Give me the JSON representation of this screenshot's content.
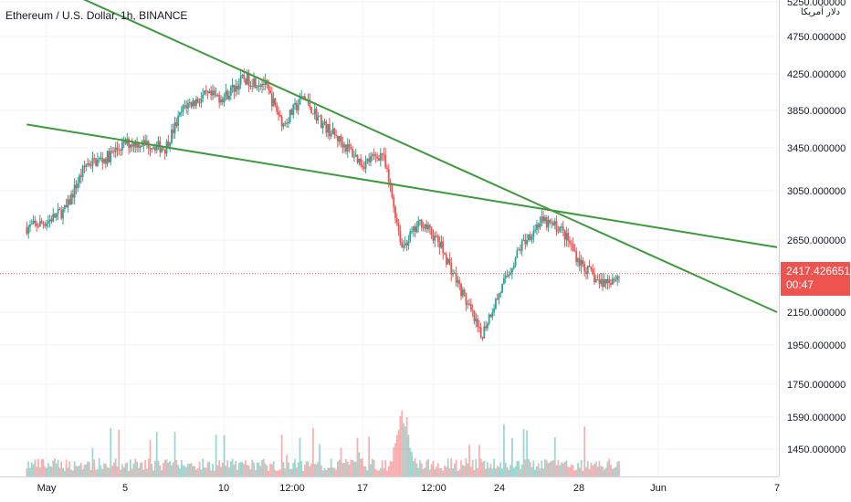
{
  "title": "Ethereum / U.S. Dollar, 1h, BINANCE",
  "currency_label": "دلار آمریکا",
  "colors": {
    "up": "#26a69a",
    "down": "#ef5350",
    "trendline": "#3d9a3d",
    "grid": "#f0f3fa",
    "axis_text": "#131722",
    "axis_border": "#d1d4dc",
    "price_badge": "#ef5350"
  },
  "price_badge": {
    "price": "2417.426651",
    "countdown": "00:47"
  },
  "chart_data": {
    "type": "candlestick",
    "symbol": "Ethereum / U.S. Dollar",
    "interval": "1h",
    "exchange": "BINANCE",
    "current_price": 2417.426651,
    "x_tick_labels": [
      "May",
      "5",
      "10",
      "12:00",
      "17",
      "12:00",
      "24",
      "28",
      "Jun",
      "7"
    ],
    "y_tick_labels": [
      "5250.000000",
      "4750.000000",
      "4250.000000",
      "3850.000000",
      "3450.000000",
      "3050.000000",
      "2650.000000",
      "2150.000000",
      "1950.000000",
      "1750.000000",
      "1590.000000",
      "1450.000000"
    ],
    "y_scale": "log",
    "price_path": [
      {
        "date": "2021-04-30",
        "price": 2750
      },
      {
        "date": "2021-05-01",
        "price": 2800
      },
      {
        "date": "2021-05-02",
        "price": 2900
      },
      {
        "date": "2021-05-03",
        "price": 3300
      },
      {
        "date": "2021-05-04",
        "price": 3350
      },
      {
        "date": "2021-05-05",
        "price": 3500
      },
      {
        "date": "2021-05-06",
        "price": 3500
      },
      {
        "date": "2021-05-07",
        "price": 3450
      },
      {
        "date": "2021-05-08",
        "price": 3900
      },
      {
        "date": "2021-05-09",
        "price": 4000
      },
      {
        "date": "2021-05-10",
        "price": 4000
      },
      {
        "date": "2021-05-11",
        "price": 4200
      },
      {
        "date": "2021-05-12",
        "price": 4150
      },
      {
        "date": "2021-05-13",
        "price": 3700
      },
      {
        "date": "2021-05-14",
        "price": 4000
      },
      {
        "date": "2021-05-15",
        "price": 3700
      },
      {
        "date": "2021-05-16",
        "price": 3500
      },
      {
        "date": "2021-05-17",
        "price": 3300
      },
      {
        "date": "2021-05-18",
        "price": 3400
      },
      {
        "date": "2021-05-19",
        "price": 2600
      },
      {
        "date": "2021-05-20",
        "price": 2800
      },
      {
        "date": "2021-05-21",
        "price": 2600
      },
      {
        "date": "2021-05-22",
        "price": 2300
      },
      {
        "date": "2021-05-23",
        "price": 2000
      },
      {
        "date": "2021-05-24",
        "price": 2300
      },
      {
        "date": "2021-05-25",
        "price": 2600
      },
      {
        "date": "2021-05-26",
        "price": 2800
      },
      {
        "date": "2021-05-27",
        "price": 2750
      },
      {
        "date": "2021-05-28",
        "price": 2500
      },
      {
        "date": "2021-05-29",
        "price": 2350
      },
      {
        "date": "2021-05-30",
        "price": 2400
      }
    ],
    "trendlines": [
      {
        "from": {
          "date": "2021-04-30",
          "price": 3700
        },
        "to": {
          "date": "2021-06-07",
          "price": 2600
        }
      },
      {
        "from": {
          "date": "2021-05-02",
          "price": 5400
        },
        "to": {
          "date": "2021-06-07",
          "price": 2150
        }
      }
    ],
    "volume": "shown",
    "grid": true
  }
}
